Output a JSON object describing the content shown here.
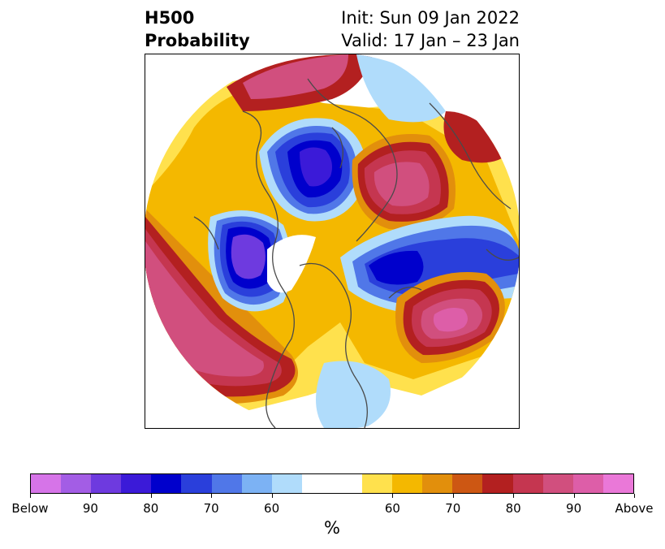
{
  "header": {
    "title_line1": "H500",
    "title_line2": "Probability",
    "init_text": "Init: Sun 09 Jan 2022",
    "valid_text": "Valid: 17 Jan – 23 Jan"
  },
  "colorbar": {
    "colors": [
      "#d674e8",
      "#a35de5",
      "#6e3adf",
      "#3b1ad8",
      "#0000cc",
      "#2a3fdb",
      "#5077e8",
      "#7cb2f4",
      "#b0dcfb",
      "#ffffff",
      "#ffffff",
      "#ffe14d",
      "#f4b800",
      "#e28f0c",
      "#cd5713",
      "#b32020",
      "#c53650",
      "#d14f7e",
      "#dd5ea8",
      "#ea78d8"
    ],
    "tick_labels": [
      "Below",
      "90",
      "80",
      "70",
      "60",
      "60",
      "70",
      "80",
      "90",
      "Above"
    ],
    "units_label": "%"
  },
  "map": {
    "land_color": "#4a4a4a",
    "anomaly_colors": {
      "below_strong": "#3b1ad8",
      "below_weak": "#b0dcfb",
      "above_weak": "#ffe14d",
      "above_strong": "#d14f7e"
    }
  }
}
